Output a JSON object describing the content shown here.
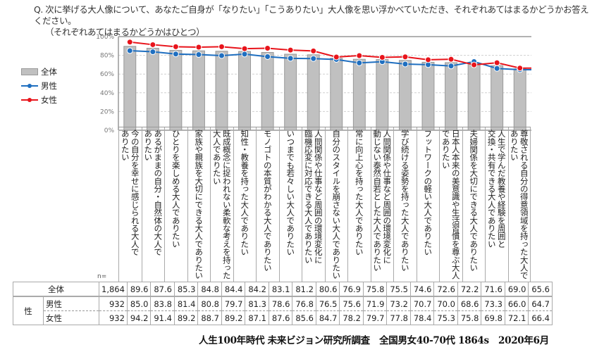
{
  "question": {
    "line1": "Q. 次に挙げる大人像について、あなたご自身が「なりたい」「こうありたい」大人像を思い浮かべていただき、それぞれあてはまるかどうかお答えください。",
    "line2": "（それぞれあてはまるかどうかはひとつ）"
  },
  "legend": {
    "total": "全体",
    "male": "男性",
    "female": "女性"
  },
  "colors": {
    "bar": "#c0c0c0",
    "bar_border": "#999999",
    "male": "#1f6fc0",
    "female": "#e8141b",
    "grid": "#d0d0d0",
    "axis": "#999999"
  },
  "chart_data": {
    "type": "bar",
    "title": "",
    "xlabel": "",
    "ylabel": "",
    "ylim": [
      0,
      100
    ],
    "yticks": [
      "0%",
      "20%",
      "40%",
      "60%",
      "80%",
      "100%"
    ],
    "grid": true,
    "legend_position": "left",
    "categories": [
      "今の自分を幸せに感じられる大人でありたい",
      "あるがままの自分・自然体の大人でありたい",
      "ひとりを楽しめる大人でありたい",
      "家族や親族を大切にできる大人でありたい",
      "既成概念に捉われない柔軟な考えを持った大人でありたい",
      "知性・教養を持った大人でありたい",
      "モノゴトの本質がわかる大人でありたい",
      "いつまでも若々しい大人でありたい",
      "人間関係や仕事など周囲の環境変化に臨機応変に対応できる大人でありたい",
      "自分のスタイルを崩さない大人でありたい",
      "常に向上心を持った大人でありたい",
      "人間関係や仕事など周囲の環境変化に動じない泰然自若とした大人でありたい",
      "学び続ける姿勢を持った大人でありたい",
      "フットワークの軽い大人でありたい",
      "日本人本来の美意識や生活習慣を尊ぶ大人でありたい",
      "夫婦関係を大切にできる大人でありたい",
      "人生で学んだ教養や経験を周囲と交換・共有できる大人でありたい",
      "尊敬される自分の得意領域を持った大人でありたい"
    ],
    "category_lines": [
      [
        "今の自分を幸せに感じられる大人で",
        "ありたい"
      ],
      [
        "あるがままの自分・自然体の大人で",
        "ありたい"
      ],
      [
        "ひとりを楽しめる大人でありたい"
      ],
      [
        "家族や親族を大切にできる大人でありたい"
      ],
      [
        "既成概念に捉われない柔軟な考えを持った",
        "大人でありたい"
      ],
      [
        "知性・教養を持った大人でありたい"
      ],
      [
        "モノゴトの本質がわかる大人でありたい"
      ],
      [
        "いつまでも若々しい大人でありたい"
      ],
      [
        "人間関係や仕事など周囲の環境変化に",
        "臨機応変に対応できる大人でありたい"
      ],
      [
        "自分のスタイルを崩さない大人でありたい"
      ],
      [
        "常に向上心を持った大人でありたい"
      ],
      [
        "人間関係や仕事など周囲の環境変化に",
        "動じない泰然自若とした大人でありたい"
      ],
      [
        "学び続ける姿勢を持った大人でありたい"
      ],
      [
        "フットワークの軽い大人でありたい"
      ],
      [
        "日本人本来の美意識や生活習慣を尊ぶ大人",
        "でありたい"
      ],
      [
        "夫婦関係を大切にできる大人でありたい"
      ],
      [
        "人生で学んだ教養や経験を周囲と",
        "交換・共有できる大人でありたい"
      ],
      [
        "尊敬される自分の得意領域を持った大人で",
        "ありたい"
      ]
    ],
    "series": [
      {
        "name": "全体",
        "type": "bar",
        "n": "1,864",
        "values": [
          89.6,
          87.6,
          85.3,
          84.8,
          84.4,
          84.2,
          83.1,
          81.2,
          80.6,
          76.9,
          75.8,
          75.5,
          74.6,
          72.6,
          72.2,
          71.6,
          69.0,
          65.6
        ]
      },
      {
        "name": "男性",
        "type": "line",
        "n": "932",
        "values": [
          85.0,
          83.8,
          81.4,
          80.8,
          79.7,
          81.3,
          78.6,
          76.8,
          76.5,
          75.6,
          71.9,
          73.2,
          70.7,
          70.0,
          68.6,
          73.3,
          66.0,
          64.7
        ]
      },
      {
        "name": "女性",
        "type": "line",
        "n": "932",
        "values": [
          94.2,
          91.4,
          89.2,
          88.7,
          89.2,
          87.1,
          87.6,
          85.6,
          84.7,
          78.2,
          79.7,
          77.8,
          78.4,
          75.3,
          75.8,
          69.8,
          72.1,
          66.4
        ]
      }
    ]
  },
  "table": {
    "n_header": "n=",
    "total_label": "全体",
    "group_label": "性",
    "male_label": "男性",
    "female_label": "女性"
  },
  "footer": "人生100年時代 未来ビジョン研究所調査　全国男女40-70代 1864s　2020年6月"
}
